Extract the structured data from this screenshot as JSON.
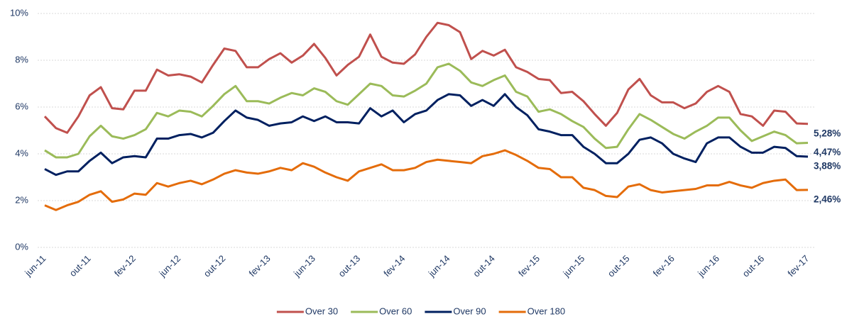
{
  "chart_data": {
    "type": "line",
    "categories": [
      "jun-11",
      null,
      null,
      null,
      "out-11",
      null,
      null,
      null,
      "fev-12",
      null,
      null,
      null,
      "jun-12",
      null,
      null,
      null,
      "out-12",
      null,
      null,
      null,
      "fev-13",
      null,
      null,
      null,
      "jun-13",
      null,
      null,
      null,
      "out-13",
      null,
      null,
      null,
      "fev-14",
      null,
      null,
      null,
      "jun-14",
      null,
      null,
      null,
      "out-14",
      null,
      null,
      null,
      "fev-15",
      null,
      null,
      null,
      "jun-15",
      null,
      null,
      null,
      "out-15",
      null,
      null,
      null,
      "fev-16",
      null,
      null,
      null,
      "jun-16",
      null,
      null,
      null,
      "out-16",
      null,
      null,
      null,
      "fev-17"
    ],
    "ylim": [
      0,
      10
    ],
    "yticks": [
      {
        "value": 0,
        "label": "0%"
      },
      {
        "value": 2,
        "label": "2%"
      },
      {
        "value": 4,
        "label": "4%"
      },
      {
        "value": 6,
        "label": "6%"
      },
      {
        "value": 8,
        "label": "8%"
      },
      {
        "value": 10,
        "label": "10%"
      }
    ],
    "grid": true,
    "legend": "bottom",
    "series": [
      {
        "name": "Over 30",
        "color": "#c0504d",
        "label_color": "#943634",
        "values": [
          5.6,
          5.1,
          4.9,
          5.6,
          6.5,
          6.85,
          5.95,
          5.9,
          6.7,
          6.7,
          7.6,
          7.35,
          7.4,
          7.3,
          7.05,
          7.8,
          8.5,
          8.4,
          7.7,
          7.7,
          8.05,
          8.3,
          7.9,
          8.2,
          8.7,
          8.1,
          7.35,
          7.8,
          8.15,
          9.1,
          8.15,
          7.9,
          7.85,
          8.25,
          9.0,
          9.6,
          9.5,
          9.2,
          8.05,
          8.4,
          8.2,
          8.45,
          7.7,
          7.5,
          7.2,
          7.15,
          6.6,
          6.65,
          6.25,
          5.7,
          5.2,
          5.75,
          6.75,
          7.2,
          6.5,
          6.2,
          6.2,
          5.95,
          6.15,
          6.65,
          6.9,
          6.65,
          5.7,
          5.6,
          5.2,
          5.85,
          5.8,
          5.3,
          5.28
        ],
        "value_labels": [
          null,
          null,
          null,
          null,
          null,
          null,
          null,
          null,
          null,
          null,
          null,
          null,
          null,
          null,
          null,
          null,
          null,
          null,
          null,
          null,
          null,
          null,
          null,
          null,
          null,
          null,
          null,
          null,
          null,
          null,
          null,
          null,
          null,
          null,
          null,
          null,
          null,
          null,
          null,
          null,
          null,
          null,
          null,
          null,
          null,
          null,
          null,
          null,
          null,
          null,
          null,
          null,
          null,
          null,
          null,
          null,
          null,
          null,
          null,
          null,
          null,
          null,
          null,
          null,
          null,
          null,
          null,
          null,
          "5,28%"
        ]
      },
      {
        "name": "Over 60",
        "color": "#9bbb59",
        "label_color": "#76923c",
        "values": [
          4.15,
          3.85,
          3.85,
          4.0,
          4.75,
          5.2,
          4.75,
          4.65,
          4.8,
          5.05,
          5.75,
          5.6,
          5.85,
          5.8,
          5.6,
          6.05,
          6.55,
          6.9,
          6.25,
          6.25,
          6.15,
          6.4,
          6.6,
          6.5,
          6.8,
          6.65,
          6.25,
          6.1,
          6.55,
          7.0,
          6.9,
          6.5,
          6.45,
          6.7,
          7.0,
          7.7,
          7.85,
          7.55,
          7.05,
          6.9,
          7.15,
          7.35,
          6.65,
          6.45,
          5.8,
          5.9,
          5.7,
          5.4,
          5.15,
          4.65,
          4.25,
          4.3,
          5.05,
          5.7,
          5.45,
          5.15,
          4.85,
          4.65,
          4.95,
          5.2,
          5.55,
          5.55,
          5.0,
          4.55,
          4.75,
          4.95,
          4.8,
          4.45,
          4.47
        ],
        "value_labels": [
          null,
          null,
          null,
          null,
          null,
          null,
          null,
          null,
          null,
          null,
          null,
          null,
          null,
          null,
          null,
          null,
          null,
          null,
          null,
          null,
          null,
          null,
          null,
          null,
          null,
          null,
          null,
          null,
          null,
          null,
          null,
          null,
          null,
          null,
          null,
          null,
          null,
          null,
          null,
          null,
          null,
          null,
          null,
          null,
          null,
          null,
          null,
          null,
          null,
          null,
          null,
          null,
          null,
          null,
          null,
          null,
          null,
          null,
          null,
          null,
          null,
          null,
          null,
          null,
          null,
          null,
          null,
          null,
          "4,47%"
        ]
      },
      {
        "name": "Over 90",
        "color": "#002060",
        "label_color": "#002060",
        "values": [
          3.35,
          3.1,
          3.25,
          3.25,
          3.7,
          4.05,
          3.6,
          3.85,
          3.9,
          3.85,
          4.65,
          4.65,
          4.8,
          4.85,
          4.7,
          4.9,
          5.4,
          5.85,
          5.55,
          5.45,
          5.2,
          5.3,
          5.35,
          5.6,
          5.4,
          5.6,
          5.35,
          5.35,
          5.3,
          5.95,
          5.6,
          5.85,
          5.35,
          5.7,
          5.85,
          6.3,
          6.55,
          6.5,
          6.05,
          6.3,
          6.05,
          6.55,
          6.0,
          5.65,
          5.05,
          4.95,
          4.8,
          4.8,
          4.3,
          4.0,
          3.6,
          3.6,
          4.0,
          4.6,
          4.7,
          4.45,
          4.0,
          3.8,
          3.65,
          4.45,
          4.7,
          4.7,
          4.3,
          4.05,
          4.05,
          4.3,
          4.25,
          3.9,
          3.88
        ],
        "value_labels": [
          null,
          null,
          null,
          null,
          null,
          null,
          null,
          null,
          null,
          null,
          null,
          null,
          null,
          null,
          null,
          null,
          null,
          null,
          null,
          null,
          null,
          null,
          null,
          null,
          null,
          null,
          null,
          null,
          null,
          null,
          null,
          null,
          null,
          null,
          null,
          null,
          null,
          null,
          null,
          null,
          null,
          null,
          null,
          null,
          null,
          null,
          null,
          null,
          null,
          null,
          null,
          null,
          null,
          null,
          null,
          null,
          null,
          null,
          null,
          null,
          null,
          null,
          null,
          null,
          null,
          null,
          null,
          null,
          "3,88%"
        ]
      },
      {
        "name": "Over 180",
        "color": "#e46c0a",
        "label_color": "#c55a11",
        "values": [
          1.8,
          1.6,
          1.8,
          1.95,
          2.25,
          2.4,
          1.95,
          2.05,
          2.3,
          2.25,
          2.75,
          2.6,
          2.75,
          2.85,
          2.7,
          2.9,
          3.15,
          3.3,
          3.2,
          3.15,
          3.25,
          3.4,
          3.3,
          3.6,
          3.45,
          3.2,
          3.0,
          2.85,
          3.25,
          3.4,
          3.55,
          3.3,
          3.3,
          3.4,
          3.65,
          3.75,
          3.7,
          3.65,
          3.6,
          3.9,
          4.0,
          4.15,
          3.95,
          3.7,
          3.4,
          3.35,
          3.0,
          3.0,
          2.55,
          2.45,
          2.2,
          2.15,
          2.6,
          2.7,
          2.45,
          2.35,
          2.4,
          2.45,
          2.5,
          2.65,
          2.65,
          2.8,
          2.65,
          2.55,
          2.75,
          2.85,
          2.9,
          2.45,
          2.46
        ],
        "value_labels": [
          null,
          null,
          null,
          null,
          null,
          null,
          null,
          null,
          null,
          null,
          null,
          null,
          null,
          null,
          null,
          null,
          null,
          null,
          null,
          null,
          null,
          null,
          null,
          null,
          null,
          null,
          null,
          null,
          null,
          null,
          null,
          null,
          null,
          null,
          null,
          null,
          null,
          null,
          null,
          null,
          null,
          null,
          null,
          null,
          null,
          null,
          null,
          null,
          null,
          null,
          null,
          null,
          null,
          null,
          null,
          null,
          null,
          null,
          null,
          null,
          null,
          null,
          null,
          null,
          null,
          null,
          null,
          null,
          "2,46%"
        ]
      }
    ]
  }
}
